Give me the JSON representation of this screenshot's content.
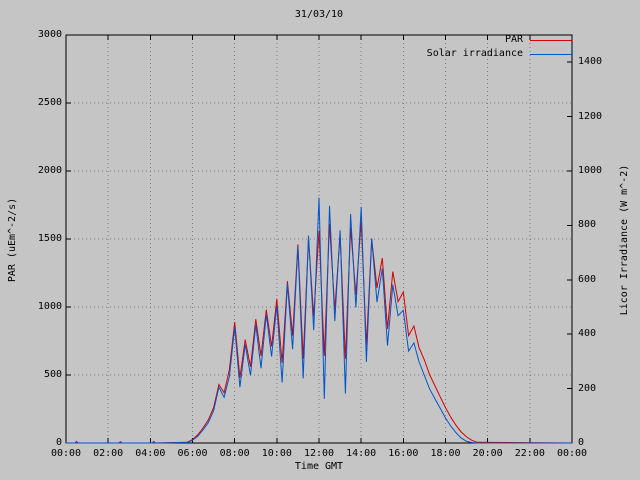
{
  "colors": {
    "background": "#c5c5c5",
    "frame": "#000000",
    "grid": "#7d7d7d",
    "text": "#000000"
  },
  "chart_data": {
    "type": "line",
    "title": "31/03/10",
    "grid": true,
    "legend_position": "top-right-inside",
    "x_axis": {
      "label": "Time GMT",
      "tick_labels": [
        "00:00",
        "02:00",
        "04:00",
        "06:00",
        "08:00",
        "10:00",
        "12:00",
        "14:00",
        "16:00",
        "18:00",
        "20:00",
        "22:00",
        "00:00"
      ],
      "tick_minutes": [
        0,
        120,
        240,
        360,
        480,
        600,
        720,
        840,
        960,
        1080,
        1200,
        1320,
        1440
      ],
      "range_minutes": [
        0,
        1440
      ]
    },
    "y_left": {
      "label": "PAR (uEm^-2/s)",
      "tick_labels": [
        "0",
        "500",
        "1000",
        "1500",
        "2000",
        "2500",
        "3000"
      ],
      "tick_values": [
        0,
        500,
        1000,
        1500,
        2000,
        2500,
        3000
      ],
      "range": [
        0,
        3000
      ]
    },
    "y_right": {
      "label": "Licor Irradiance (W m^-2)",
      "tick_labels": [
        "0",
        "200",
        "400",
        "600",
        "800",
        "1000",
        "1200",
        "1400"
      ],
      "tick_values": [
        0,
        200,
        400,
        600,
        800,
        1000,
        1200,
        1400
      ],
      "range": [
        0,
        1500
      ]
    },
    "x_minutes": [
      0,
      25,
      30,
      35,
      150,
      155,
      160,
      245,
      250,
      255,
      345,
      360,
      375,
      390,
      405,
      420,
      435,
      450,
      465,
      480,
      495,
      510,
      525,
      540,
      555,
      570,
      585,
      600,
      615,
      630,
      645,
      660,
      675,
      690,
      705,
      720,
      735,
      750,
      765,
      780,
      795,
      810,
      825,
      840,
      855,
      870,
      885,
      900,
      915,
      930,
      945,
      960,
      975,
      990,
      1005,
      1020,
      1035,
      1050,
      1065,
      1080,
      1095,
      1110,
      1125,
      1140,
      1155,
      1170,
      1440
    ],
    "series": [
      {
        "name": "PAR",
        "axis": "left",
        "units": "uEm^-2/s",
        "color": "#d40000",
        "values": [
          0,
          0,
          0,
          0,
          0,
          0,
          0,
          0,
          0,
          0,
          5,
          25,
          60,
          110,
          170,
          260,
          430,
          370,
          540,
          890,
          480,
          760,
          560,
          910,
          640,
          980,
          710,
          1060,
          590,
          1190,
          790,
          1460,
          620,
          1500,
          930,
          1560,
          640,
          1610,
          980,
          1530,
          620,
          1580,
          1090,
          1630,
          720,
          1500,
          1140,
          1360,
          840,
          1260,
          1040,
          1110,
          790,
          860,
          700,
          610,
          500,
          420,
          340,
          260,
          190,
          130,
          80,
          45,
          20,
          5,
          0
        ]
      },
      {
        "name": "Solar irradiance",
        "axis": "right",
        "units": "W m^-2",
        "color": "#0055cc",
        "values": [
          0,
          0,
          6,
          0,
          0,
          5,
          0,
          0,
          6,
          0,
          2,
          10,
          25,
          48,
          75,
          118,
          205,
          168,
          245,
          425,
          205,
          362,
          248,
          435,
          275,
          472,
          318,
          505,
          222,
          585,
          345,
          722,
          238,
          762,
          415,
          902,
          162,
          872,
          448,
          782,
          182,
          842,
          498,
          868,
          298,
          752,
          518,
          642,
          358,
          582,
          468,
          488,
          338,
          368,
          298,
          248,
          198,
          162,
          128,
          92,
          62,
          38,
          18,
          6,
          2,
          0,
          0
        ]
      }
    ]
  }
}
